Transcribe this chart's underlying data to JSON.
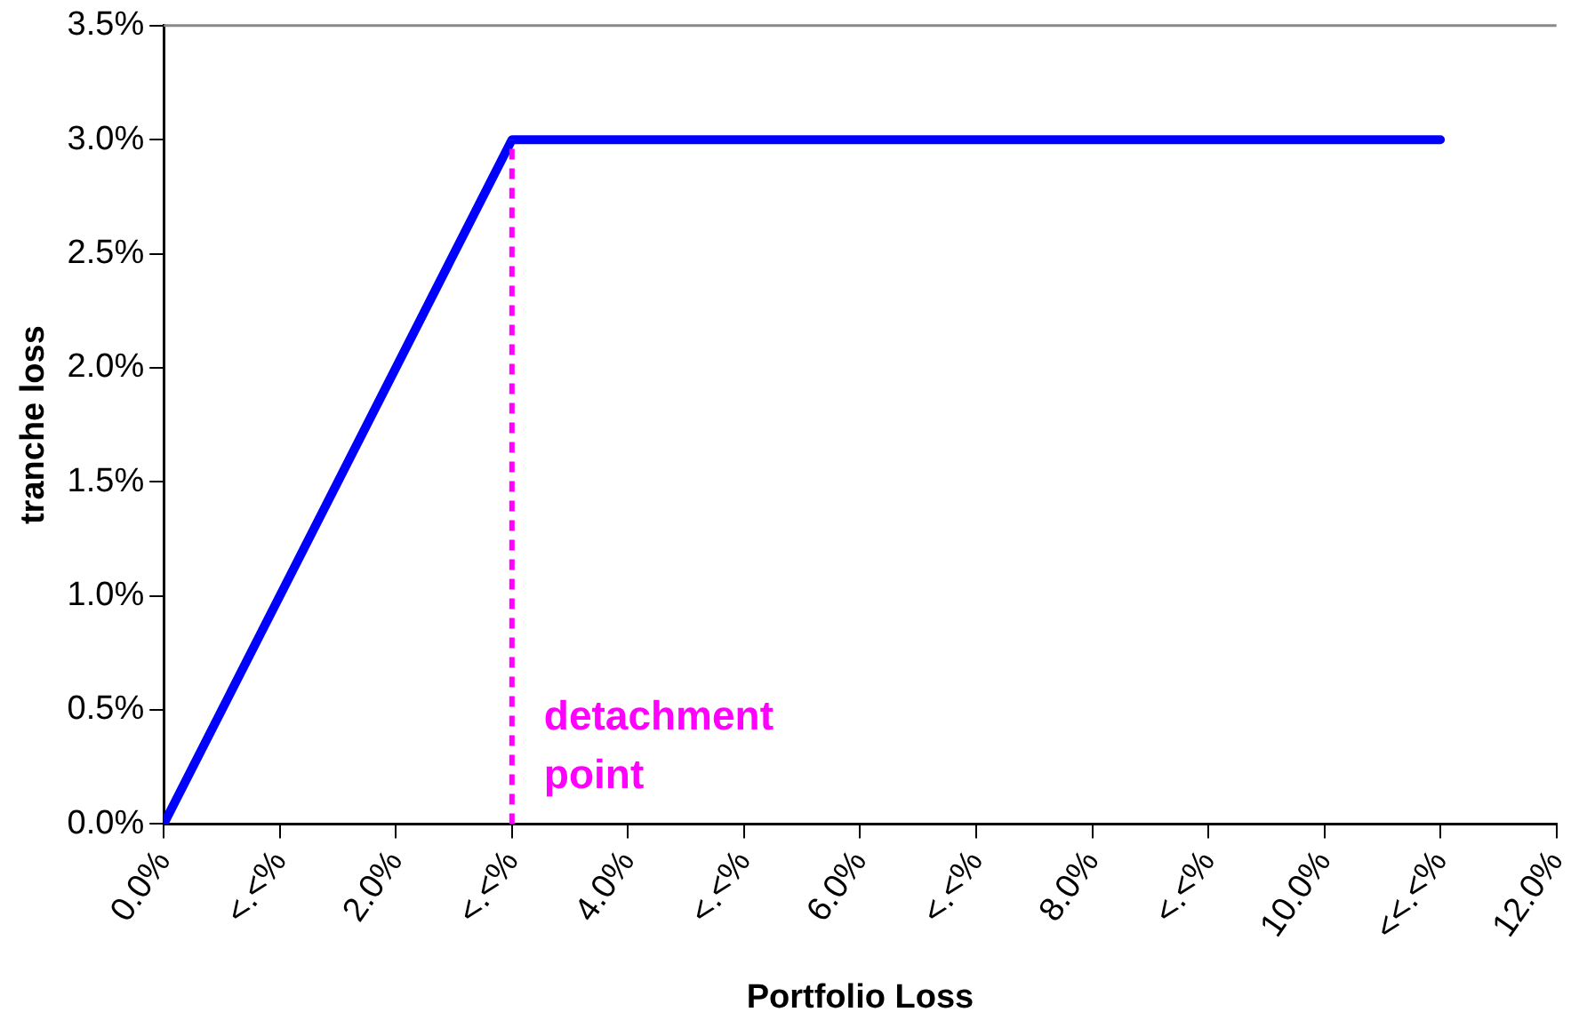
{
  "chart_data": {
    "type": "line",
    "xlabel": "Portfolio Loss",
    "ylabel": "tranche loss",
    "series": [
      {
        "color": "#0000ff",
        "x": [
          0,
          3,
          11
        ],
        "values": [
          0,
          3,
          3
        ]
      }
    ],
    "xlim": [
      0,
      12
    ],
    "xticks": [
      {
        "value": 0,
        "label": "0.0%"
      },
      {
        "value": 1,
        "label": "<.<%"
      },
      {
        "value": 2,
        "label": "2.0%"
      },
      {
        "value": 3,
        "label": "<.<%"
      },
      {
        "value": 4,
        "label": "4.0%"
      },
      {
        "value": 5,
        "label": "<.<%"
      },
      {
        "value": 6,
        "label": "6.0%"
      },
      {
        "value": 7,
        "label": "<.<%"
      },
      {
        "value": 8,
        "label": "8.0%"
      },
      {
        "value": 9,
        "label": "<.<%"
      },
      {
        "value": 10,
        "label": "10.0%"
      },
      {
        "value": 11,
        "label": "<<.<%"
      },
      {
        "value": 12,
        "label": "12.0%"
      }
    ],
    "ylim": [
      0,
      3.5
    ],
    "yticks": [
      {
        "value": 0,
        "label": "0.0%"
      },
      {
        "value": 0.5,
        "label": "0.5%"
      },
      {
        "value": 1,
        "label": "1.0%"
      },
      {
        "value": 1.5,
        "label": "1.5%"
      },
      {
        "value": 2,
        "label": "2.0%"
      },
      {
        "value": 2.5,
        "label": "2.5%"
      },
      {
        "value": 3,
        "label": "3.0%"
      },
      {
        "value": 3.5,
        "label": "3.5%"
      }
    ],
    "ref_lines": [
      {
        "axis": "x",
        "value": 3,
        "label": "detachment point",
        "color": "#ff00ff",
        "line_style": "dashed"
      }
    ],
    "grid": false,
    "legend": false,
    "marker": "none",
    "line_style": "solid"
  }
}
